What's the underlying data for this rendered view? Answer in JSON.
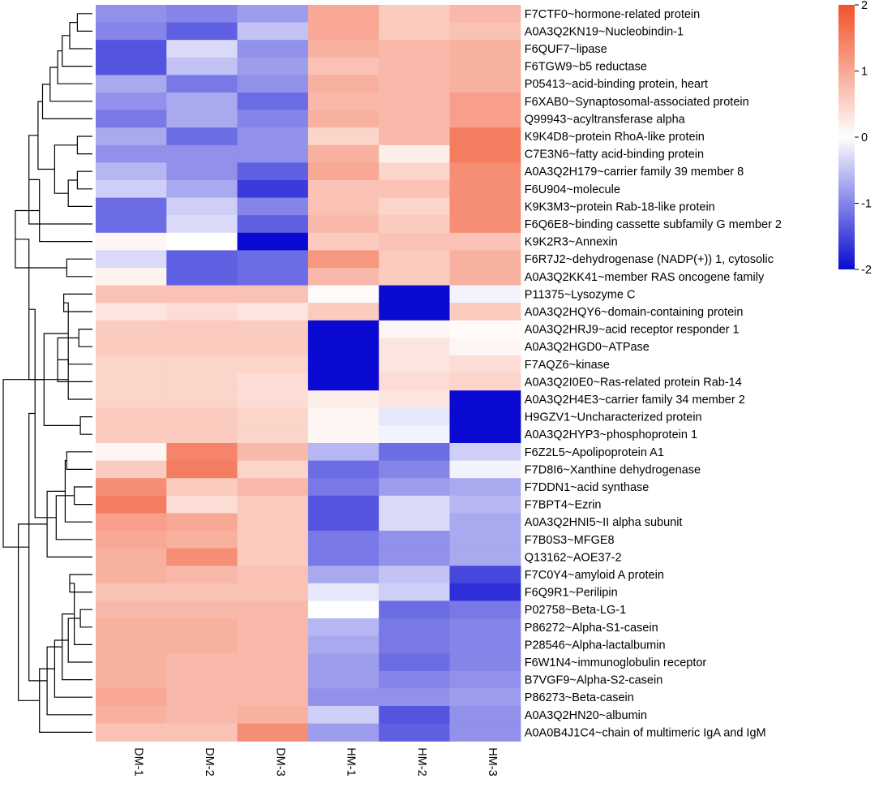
{
  "chart_data": {
    "type": "heatmap",
    "title": "",
    "columns": [
      "DM-1",
      "DM-2",
      "DM-3",
      "HM-1",
      "HM-2",
      "HM-3"
    ],
    "rows": [
      "F7CTF0~hormone-related protein",
      "A0A3Q2KN19~Nucleobindin-1",
      "F6QUF7~lipase",
      "F6TGW9~b5 reductase",
      "P05413~acid-binding protein, heart",
      "F6XAB0~Synaptosomal-associated protein",
      "Q99943~acyltransferase alpha",
      "K9K4D8~protein RhoA-like protein",
      "C7E3N6~fatty acid-binding protein",
      "A0A3Q2H179~carrier family 39 member 8",
      "F6U904~molecule",
      "K9K3M3~protein Rab-18-like protein",
      "F6Q6E8~binding cassette subfamily G member 2",
      "K9K2R3~Annexin",
      "F6R7J2~dehydrogenase (NADP(+)) 1, cytosolic",
      "A0A3Q2KK41~member RAS oncogene family",
      "P11375~Lysozyme C",
      "A0A3Q2HQY6~domain-containing protein",
      "A0A3Q2HRJ9~acid receptor responder 1",
      "A0A3Q2HGD0~ATPase",
      "F7AQZ6~kinase",
      "A0A3Q2I0E0~Ras-related protein Rab-14",
      "A0A3Q2H4E3~carrier family 34 member 2",
      "H9GZV1~Uncharacterized protein",
      "A0A3Q2HYP3~phosphoprotein 1",
      "F6Z2L5~Apolipoprotein A1",
      "F7D8I6~Xanthine dehydrogenase",
      "F7DDN1~acid synthase",
      "F7BPT4~Ezrin",
      "A0A3Q2HNI5~II alpha subunit",
      "F7B0S3~MFGE8",
      "Q13162~AOE37-2",
      "F7C0Y4~amyloid A protein",
      "F6Q9R1~Perilipin",
      "P02758~Beta-LG-1",
      "P86272~Alpha-S1-casein",
      "P28546~Alpha-lactalbumin",
      "F6W1N4~immunoglobulin receptor",
      "B7VGF9~Alpha-S2-casein",
      "P86273~Beta-casein",
      "A0A3Q2HN20~albumin",
      "A0A0B4J1C4~chain of multimeric IgA and IgM"
    ],
    "values": [
      [
        -0.9,
        -1.0,
        -0.8,
        1.0,
        0.6,
        0.8
      ],
      [
        -1.0,
        -1.3,
        -0.5,
        1.0,
        0.6,
        0.7
      ],
      [
        -1.4,
        -0.3,
        -0.9,
        0.9,
        0.8,
        0.9
      ],
      [
        -1.4,
        -0.5,
        -0.8,
        0.7,
        0.8,
        0.9
      ],
      [
        -0.7,
        -1.1,
        -0.9,
        0.9,
        0.8,
        0.9
      ],
      [
        -0.9,
        -0.7,
        -1.2,
        0.8,
        0.8,
        1.1
      ],
      [
        -1.1,
        -0.7,
        -1.0,
        0.9,
        0.8,
        1.1
      ],
      [
        -0.7,
        -1.2,
        -0.9,
        0.5,
        0.8,
        1.5
      ],
      [
        -0.9,
        -0.9,
        -0.9,
        0.9,
        0.2,
        1.5
      ],
      [
        -0.6,
        -0.9,
        -1.3,
        1.0,
        0.5,
        1.3
      ],
      [
        -0.4,
        -0.7,
        -1.6,
        0.7,
        0.7,
        1.3
      ],
      [
        -1.2,
        -0.4,
        -1.0,
        0.7,
        0.5,
        1.3
      ],
      [
        -1.2,
        -0.3,
        -1.3,
        0.8,
        0.6,
        1.3
      ],
      [
        0.1,
        0.0,
        -2.0,
        0.6,
        0.7,
        0.7
      ],
      [
        -0.3,
        -1.3,
        -1.2,
        1.2,
        0.6,
        0.9
      ],
      [
        0.15,
        -1.3,
        -1.2,
        0.8,
        0.6,
        0.9
      ],
      [
        0.7,
        0.7,
        0.7,
        0.05,
        -2.0,
        -0.1
      ],
      [
        0.3,
        0.4,
        0.3,
        0.6,
        -2.0,
        0.6
      ],
      [
        0.6,
        0.6,
        0.6,
        -2.0,
        0.1,
        0.05
      ],
      [
        0.6,
        0.6,
        0.6,
        -2.0,
        0.3,
        0.1
      ],
      [
        0.5,
        0.5,
        0.5,
        -2.0,
        0.3,
        0.4
      ],
      [
        0.5,
        0.5,
        0.4,
        -2.0,
        0.4,
        0.5
      ],
      [
        0.5,
        0.5,
        0.4,
        0.2,
        0.3,
        -2.0
      ],
      [
        0.6,
        0.6,
        0.5,
        0.1,
        -0.2,
        -2.0
      ],
      [
        0.6,
        0.6,
        0.5,
        0.1,
        -0.1,
        -2.0
      ],
      [
        0.1,
        1.4,
        0.8,
        -0.6,
        -1.2,
        -0.4
      ],
      [
        0.6,
        1.5,
        0.5,
        -1.2,
        -1.0,
        -0.1
      ],
      [
        1.3,
        0.6,
        0.8,
        -1.1,
        -0.8,
        -0.7
      ],
      [
        1.5,
        0.4,
        0.6,
        -1.4,
        -0.3,
        -0.6
      ],
      [
        1.1,
        1.0,
        0.6,
        -1.4,
        -0.3,
        -0.7
      ],
      [
        1.0,
        0.9,
        0.6,
        -1.1,
        -0.9,
        -0.7
      ],
      [
        0.9,
        1.3,
        0.6,
        -1.1,
        -0.9,
        -0.7
      ],
      [
        0.9,
        0.8,
        0.7,
        -0.7,
        -0.5,
        -1.5
      ],
      [
        0.7,
        0.7,
        0.7,
        -0.2,
        -0.4,
        -1.7
      ],
      [
        0.8,
        0.8,
        0.8,
        0.0,
        -1.2,
        -1.1
      ],
      [
        0.9,
        0.9,
        0.8,
        -0.6,
        -1.1,
        -1.0
      ],
      [
        0.9,
        0.9,
        0.8,
        -0.7,
        -1.1,
        -1.0
      ],
      [
        0.9,
        0.8,
        0.8,
        -0.8,
        -1.2,
        -1.0
      ],
      [
        0.9,
        0.8,
        0.8,
        -0.8,
        -1.0,
        -0.9
      ],
      [
        1.0,
        0.8,
        0.8,
        -0.9,
        -0.9,
        -0.8
      ],
      [
        0.9,
        0.8,
        0.9,
        -0.4,
        -1.4,
        -0.9
      ],
      [
        0.7,
        0.7,
        1.3,
        -0.8,
        -1.3,
        -0.9
      ]
    ],
    "scale": {
      "min": -2,
      "max": 2,
      "ticks": [
        2,
        1,
        0,
        -1,
        -2
      ],
      "colors": {
        "low": "#0a0ad2",
        "mid": "#ffffff",
        "high": "#f0512a"
      }
    },
    "dendrogram": [
      [
        0,
        1
      ],
      [
        42,
        2
      ],
      [
        43,
        3
      ],
      [
        44,
        4
      ],
      [
        45,
        5
      ],
      [
        46,
        6
      ],
      [
        7,
        8
      ],
      [
        9,
        10
      ],
      [
        49,
        11
      ],
      [
        48,
        50
      ],
      [
        47,
        51
      ],
      [
        52,
        12
      ],
      [
        14,
        15
      ],
      [
        53,
        13
      ],
      [
        55,
        54
      ],
      [
        16,
        17
      ],
      [
        18,
        19
      ],
      [
        57,
        20
      ],
      [
        58,
        21
      ],
      [
        23,
        24
      ],
      [
        60,
        22
      ],
      [
        59,
        61
      ],
      [
        56,
        62
      ],
      [
        25,
        26
      ],
      [
        27,
        28
      ],
      [
        65,
        29
      ],
      [
        66,
        30
      ],
      [
        67,
        31
      ],
      [
        64,
        68
      ],
      [
        32,
        33
      ],
      [
        34,
        35
      ],
      [
        71,
        36
      ],
      [
        72,
        37
      ],
      [
        73,
        38
      ],
      [
        74,
        39
      ],
      [
        75,
        40
      ],
      [
        76,
        41
      ],
      [
        70,
        77
      ],
      [
        69,
        78
      ],
      [
        63,
        79
      ],
      [
        57,
        57
      ]
    ],
    "dendrogram_heights": [
      1,
      1.5,
      2,
      2.3,
      2.8,
      3.3,
      1,
      1,
      1.6,
      2.5,
      3.6,
      4.2,
      1.7,
      3.5,
      5.1,
      1.9,
      0.9,
      1.6,
      2.3,
      0.8,
      1.6,
      3.2,
      4.2,
      1.7,
      1.2,
      1.8,
      2.4,
      3.0,
      3.8,
      1.5,
      0.8,
      1.2,
      1.6,
      2.0,
      2.5,
      3.0,
      3.5,
      4.2,
      4.9,
      5.9,
      0
    ]
  }
}
